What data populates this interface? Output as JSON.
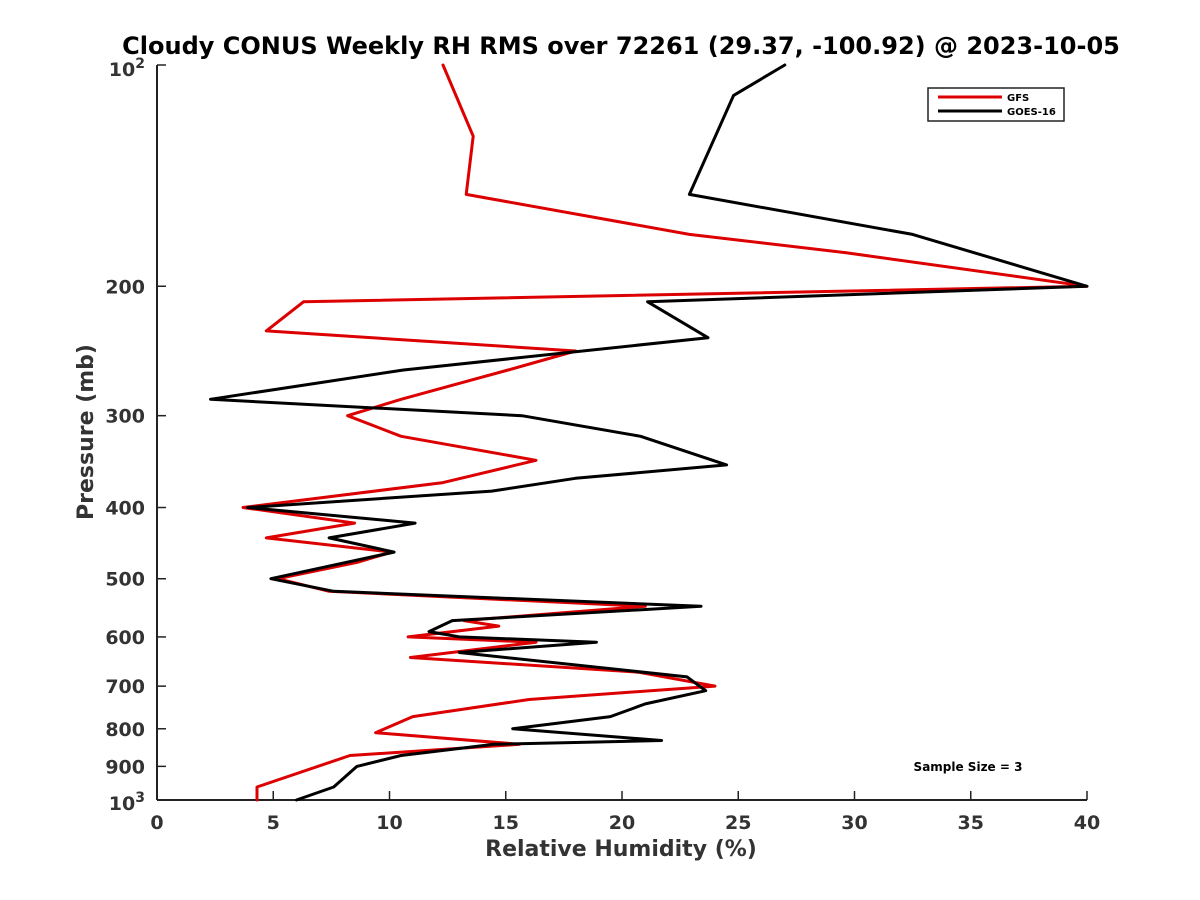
{
  "chart_data": {
    "type": "line",
    "title": "Cloudy CONUS Weekly RH RMS over 72261 (29.37, -100.92) @ 2023-10-05",
    "xlabel": "Relative Humidity (%)",
    "ylabel": "Pressure (mb)",
    "xlim": [
      0,
      40
    ],
    "ylim": [
      1000,
      100
    ],
    "yscale": "log",
    "x_ticks": [
      "0",
      "5",
      "10",
      "15",
      "20",
      "25",
      "30",
      "35",
      "40"
    ],
    "y_ticks": [
      "200",
      "300",
      "400",
      "500",
      "600",
      "700",
      "800",
      "900"
    ],
    "y_ticks_special": {
      "top": "10",
      "top_exp": "2",
      "bottom": "10",
      "bottom_exp": "3"
    },
    "legend_position": "top-right",
    "grid": false,
    "annotation": "Sample Size = 3",
    "series": [
      {
        "name": "GFS",
        "color": "#dd0000",
        "points": [
          [
            12.3,
            100
          ],
          [
            13.6,
            125
          ],
          [
            13.3,
            150
          ],
          [
            22.9,
            170
          ],
          [
            29.6,
            180
          ],
          [
            40.0,
            200
          ],
          [
            6.3,
            210
          ],
          [
            4.7,
            230
          ],
          [
            18.0,
            245
          ],
          [
            15.1,
            260
          ],
          [
            10.5,
            285
          ],
          [
            8.2,
            300
          ],
          [
            10.5,
            320
          ],
          [
            16.3,
            345
          ],
          [
            12.3,
            370
          ],
          [
            3.7,
            400
          ],
          [
            8.5,
            420
          ],
          [
            4.7,
            440
          ],
          [
            10.1,
            460
          ],
          [
            8.6,
            475
          ],
          [
            5.2,
            500
          ],
          [
            7.4,
            520
          ],
          [
            21.0,
            545
          ],
          [
            13.2,
            570
          ],
          [
            14.7,
            580
          ],
          [
            10.8,
            600
          ],
          [
            16.3,
            610
          ],
          [
            10.9,
            640
          ],
          [
            20.7,
            670
          ],
          [
            24.0,
            700
          ],
          [
            16.0,
            730
          ],
          [
            11.0,
            770
          ],
          [
            9.4,
            810
          ],
          [
            15.6,
            840
          ],
          [
            8.3,
            870
          ],
          [
            4.3,
            960
          ],
          [
            4.3,
            1000
          ]
        ]
      },
      {
        "name": "GOES-16",
        "color": "#000000",
        "points": [
          [
            27.0,
            100
          ],
          [
            24.8,
            110
          ],
          [
            22.9,
            150
          ],
          [
            32.5,
            170
          ],
          [
            40.0,
            200
          ],
          [
            21.1,
            210
          ],
          [
            23.7,
            235
          ],
          [
            10.6,
            260
          ],
          [
            2.3,
            285
          ],
          [
            15.7,
            300
          ],
          [
            20.8,
            320
          ],
          [
            24.5,
            350
          ],
          [
            18.0,
            365
          ],
          [
            14.4,
            380
          ],
          [
            3.9,
            400
          ],
          [
            11.1,
            420
          ],
          [
            7.4,
            440
          ],
          [
            10.2,
            460
          ],
          [
            4.9,
            500
          ],
          [
            7.6,
            520
          ],
          [
            23.4,
            545
          ],
          [
            12.7,
            570
          ],
          [
            11.7,
            590
          ],
          [
            13.0,
            600
          ],
          [
            18.9,
            610
          ],
          [
            13.0,
            630
          ],
          [
            22.8,
            680
          ],
          [
            23.6,
            710
          ],
          [
            21.0,
            740
          ],
          [
            19.5,
            770
          ],
          [
            15.3,
            800
          ],
          [
            21.7,
            830
          ],
          [
            14.5,
            840
          ],
          [
            10.5,
            870
          ],
          [
            8.6,
            900
          ],
          [
            7.6,
            960
          ],
          [
            6.0,
            1000
          ]
        ]
      }
    ]
  }
}
